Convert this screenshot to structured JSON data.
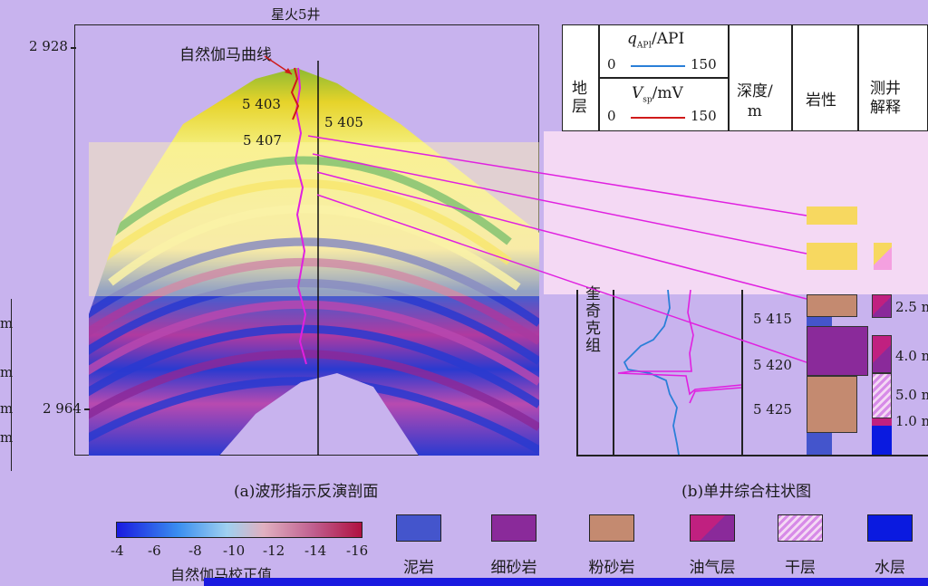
{
  "figure": {
    "well_name": "星火5井",
    "depth_top": "2 928",
    "depth_bottom": "2 964",
    "gamma_curve_label": "自然伽马曲线",
    "section_depths": [
      "5 403",
      "5 405",
      "5 407"
    ],
    "caption_a": "(a)波形指示反演剖面",
    "caption_b": "(b)单井综合柱状图",
    "left_cut_labels": [
      "m",
      "m",
      "m",
      "m"
    ]
  },
  "column_header": {
    "stratum": "地\n层",
    "qapi_label": "API",
    "qapi_symbol": "q",
    "qapi_sub": "API",
    "qapi_min": "0",
    "qapi_max": "150",
    "vsp_symbol": "V",
    "vsp_sub": "sp",
    "vsp_label": "mV",
    "vsp_min": "0",
    "vsp_max": "150",
    "depth": "深度/\nm",
    "lithology": "岩性",
    "interpretation": "测井\n解释",
    "formation": "奎\n奇\n克\n组",
    "depth_ticks": [
      "5 415",
      "5 420",
      "5 425"
    ],
    "interp_thickness": [
      "2.5 m",
      "4.0 m",
      "5.0 m",
      "1.0 m"
    ]
  },
  "colorbar": {
    "ticks": [
      "-4",
      "-6",
      "-8",
      "-10",
      "-12",
      "-14",
      "-16"
    ],
    "title": "自然伽马校正值"
  },
  "legend": [
    {
      "name": "泥岩",
      "color": "#4455cc"
    },
    {
      "name": "细砂岩",
      "color": "#8a2a9a"
    },
    {
      "name": "粉砂岩",
      "color": "#c48a70"
    },
    {
      "name": "油气层",
      "color": "#c02080"
    },
    {
      "name": "干层",
      "color": "#d78be8"
    },
    {
      "name": "水层",
      "color": "#0a1ae0"
    }
  ],
  "colors": {
    "gamma_curve": "#2a7fd8",
    "sp_curve": "#d01a1a",
    "connector": "#e020e0"
  }
}
